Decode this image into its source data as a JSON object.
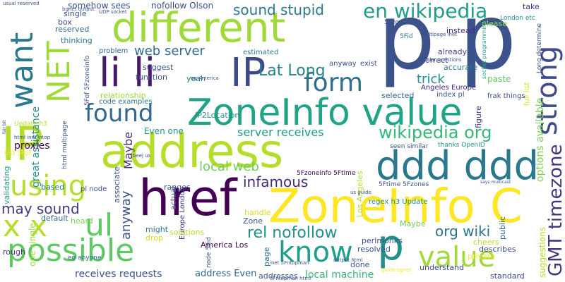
{
  "word_cloud": {
    "words": [
      {
        "text": "p",
        "color": "#3b528b"
      },
      {
        "text": "p",
        "color": "#3b528b"
      },
      {
        "text": "address",
        "color": "#b5de2b"
      },
      {
        "text": "IP",
        "color": "#b5de2b"
      },
      {
        "text": "ZoneInfo value",
        "color": "#20a386"
      },
      {
        "text": "ddd ddd",
        "color": "#2a788e"
      },
      {
        "text": "href",
        "color": "#440154"
      },
      {
        "text": "ZoneInfo C",
        "color": "#fde725"
      },
      {
        "text": "different",
        "color": "#a0da39"
      },
      {
        "text": "li li",
        "color": "#48186a"
      },
      {
        "text": "IP",
        "color": "#3e4a89"
      },
      {
        "text": "possible",
        "color": "#5ec962"
      },
      {
        "text": "using",
        "color": "#b5de2b"
      },
      {
        "text": "know",
        "color": "#1f9e89"
      },
      {
        "text": "found",
        "color": "#31688e"
      },
      {
        "text": "value",
        "color": "#a0da39"
      },
      {
        "text": "form",
        "color": "#2d708e"
      },
      {
        "text": "x x",
        "color": "#b5de2b"
      },
      {
        "text": "ul",
        "color": "#5ec962"
      },
      {
        "text": "en wikipedia",
        "color": "#1f9e89"
      },
      {
        "text": "want",
        "color": "#2a788e"
      },
      {
        "text": "NET",
        "color": "#a0da39"
      },
      {
        "text": "strong",
        "color": "#3e4a89"
      },
      {
        "text": "wikipedia org",
        "color": "#35b779"
      },
      {
        "text": "p",
        "color": "#21918c"
      },
      {
        "text": "Lat Long",
        "color": "#26828e"
      },
      {
        "text": "rel nofollow",
        "color": "#21918c"
      },
      {
        "text": "GMT timezone",
        "color": "#46337e"
      },
      {
        "text": "sound stupid",
        "color": "#2a788e"
      },
      {
        "text": "web server",
        "color": "#31688e"
      },
      {
        "text": "infamous",
        "color": "#482878"
      },
      {
        "text": "trick",
        "color": "#21918c"
      },
      {
        "text": "may sound",
        "color": "#443983"
      },
      {
        "text": "org wiki",
        "color": "#2c728e"
      },
      {
        "text": "local web",
        "color": "#6ece58"
      },
      {
        "text": "server receives",
        "color": "#1f9e89"
      },
      {
        "text": "Maybe",
        "color": "#472d7b"
      },
      {
        "text": "anyway",
        "color": "#3b528b"
      },
      {
        "text": "options available",
        "color": "#7ad151"
      },
      {
        "text": "local machine",
        "color": "#35b779"
      },
      {
        "text": "receives requests",
        "color": "#3b528b"
      },
      {
        "text": "address Even",
        "color": "#31688e"
      },
      {
        "text": "proxies",
        "color": "#440154"
      },
      {
        "text": "somehow sees",
        "color": "#3b528b"
      },
      {
        "text": "great assistance",
        "color": "#21918c"
      },
      {
        "text": "Even one",
        "color": "#21918c"
      },
      {
        "text": "one single",
        "color": "#a0da39"
      },
      {
        "text": "IP2Location",
        "color": "#21918c"
      },
      {
        "text": "relationship",
        "color": "#a0da39"
      },
      {
        "text": "code examples",
        "color": "#2a788e"
      },
      {
        "text": "figure",
        "color": "#46337e"
      },
      {
        "text": "Angeles Europe",
        "color": "#482878"
      },
      {
        "text": "index pl",
        "color": "#38598c"
      },
      {
        "text": "frak things",
        "color": "#3e4a89"
      },
      {
        "text": "full list",
        "color": "#d8e219"
      },
      {
        "text": "paste",
        "color": "#5ec962"
      },
      {
        "text": "accurate",
        "color": "#2a788e"
      },
      {
        "text": "already",
        "color": "#433e85"
      },
      {
        "text": "correct",
        "color": "#3e4a89"
      },
      {
        "text": "instead",
        "color": "#482878"
      },
      {
        "text": "please",
        "color": "#8fd744"
      },
      {
        "text": "take",
        "color": "#46337e"
      },
      {
        "text": "London etc",
        "color": "#21918c"
      },
      {
        "text": "selected",
        "color": "#31688e"
      },
      {
        "text": "estimated",
        "color": "#2a788e"
      },
      {
        "text": "anyway",
        "color": "#3b528b"
      },
      {
        "text": "exist",
        "color": "#3b528b"
      },
      {
        "text": "yeah",
        "color": "#26828e"
      },
      {
        "text": "suggest",
        "color": "#3b528b"
      },
      {
        "text": "function",
        "color": "#3b528b"
      },
      {
        "text": "problem",
        "color": "#31688e"
      },
      {
        "text": "thinking",
        "color": "#2a788e"
      },
      {
        "text": "reserved",
        "color": "#31688e"
      },
      {
        "text": "box",
        "color": "#3e4a89"
      },
      {
        "text": "single",
        "color": "#3b528b"
      },
      {
        "text": "nofollow Olson",
        "color": "#3b528b"
      },
      {
        "text": "default",
        "color": "#31688e"
      },
      {
        "text": "heard",
        "color": "#7ad151"
      },
      {
        "text": "based",
        "color": "#2a788e"
      },
      {
        "text": "rough",
        "color": "#46337e"
      },
      {
        "text": "ranges",
        "color": "#3b528b"
      },
      {
        "text": "might",
        "color": "#2a788e"
      },
      {
        "text": "drop",
        "color": "#d8e219"
      },
      {
        "text": "solutions",
        "color": "#b5de2b"
      },
      {
        "text": "handle",
        "color": "#d8e219"
      },
      {
        "text": "Zone",
        "color": "#3b528b"
      },
      {
        "text": "America Los",
        "color": "#440154"
      },
      {
        "text": "perlmonks",
        "color": "#3b528b"
      },
      {
        "text": "cheers",
        "color": "#b5de2b"
      },
      {
        "text": "resolved",
        "color": "#3b528b"
      },
      {
        "text": "describes",
        "color": "#3e4a89"
      },
      {
        "text": "done",
        "color": "#38598c"
      },
      {
        "text": "understand",
        "color": "#3e4a89"
      },
      {
        "text": "private",
        "color": "#fde725"
      },
      {
        "text": "standard",
        "color": "#3e4a89"
      },
      {
        "text": "addresses",
        "color": "#3b528b"
      },
      {
        "text": "Maybe",
        "color": "#6ece58"
      },
      {
        "text": "suggestions",
        "color": "#b5de2b"
      },
      {
        "text": "public",
        "color": "#31688e"
      },
      {
        "text": "validating",
        "color": "#20a386"
      },
      {
        "text": "associate",
        "color": "#3b528b"
      },
      {
        "text": "actual",
        "color": "#3b528b"
      },
      {
        "text": "page",
        "color": "#2a788e"
      },
      {
        "text": "Los Angeles",
        "color": "#b5de2b"
      },
      {
        "text": "Europe London",
        "color": "#46337e"
      },
      {
        "text": "regex h3 Update",
        "color": "#21918c"
      },
      {
        "text": "seen similar",
        "color": "#3b528b"
      },
      {
        "text": "thanks OpenID",
        "color": "#21918c"
      },
      {
        "text": "5Fzoneinfo 5Ftime",
        "color": "#440154"
      },
      {
        "text": "5Ftime 5Fzones",
        "color": "#3b528b"
      },
      {
        "text": "pl node",
        "color": "#3b528b"
      },
      {
        "text": "eg anyone",
        "color": "#31688e"
      },
      {
        "text": "5Fid",
        "color": "#2a788e"
      },
      {
        "text": "node 5Fid",
        "color": "#3b528b"
      },
      {
        "text": "usual reserved",
        "color": "#3b528b"
      },
      {
        "text": "UDP socket",
        "color": "#3b528b"
      },
      {
        "text": "5Fzones rel",
        "color": "#3b528b"
      },
      {
        "text": "multipage inet",
        "color": "#3b528b"
      },
      {
        "text": "similar questions",
        "color": "#3b528b"
      },
      {
        "text": "Update h3",
        "color": "#b5de2b"
      },
      {
        "text": "html inet_ntop",
        "color": "#3b528b"
      },
      {
        "text": "html multipage",
        "color": "#3b528b"
      },
      {
        "text": "List 5Fof",
        "color": "#fde725"
      },
      {
        "text": "5Fof 5Fzoneinfo",
        "color": "#3b528b"
      },
      {
        "text": "eg America",
        "color": "#3b528b"
      },
      {
        "text": "beej us",
        "color": "#3b528b"
      },
      {
        "text": "inet 5Fntopman",
        "color": "#3b528b"
      },
      {
        "text": "output html",
        "color": "#3b528b"
      },
      {
        "text": "5Fntopman html",
        "color": "#3b528b"
      },
      {
        "text": "us guide",
        "color": "#3b528b"
      },
      {
        "text": "says multicast",
        "color": "#3b528b"
      },
      {
        "text": "guide bgnet",
        "color": "#fde725"
      },
      {
        "text": "bgnet output",
        "color": "#3b528b"
      },
      {
        "text": "fair bit",
        "color": "#3b528b"
      },
      {
        "text": "socket programming",
        "color": "#20a386"
      },
      {
        "text": "Long determine",
        "color": "#3b528b"
      },
      {
        "text": "5Fid dangerous",
        "color": "#31688e"
      }
    ]
  }
}
